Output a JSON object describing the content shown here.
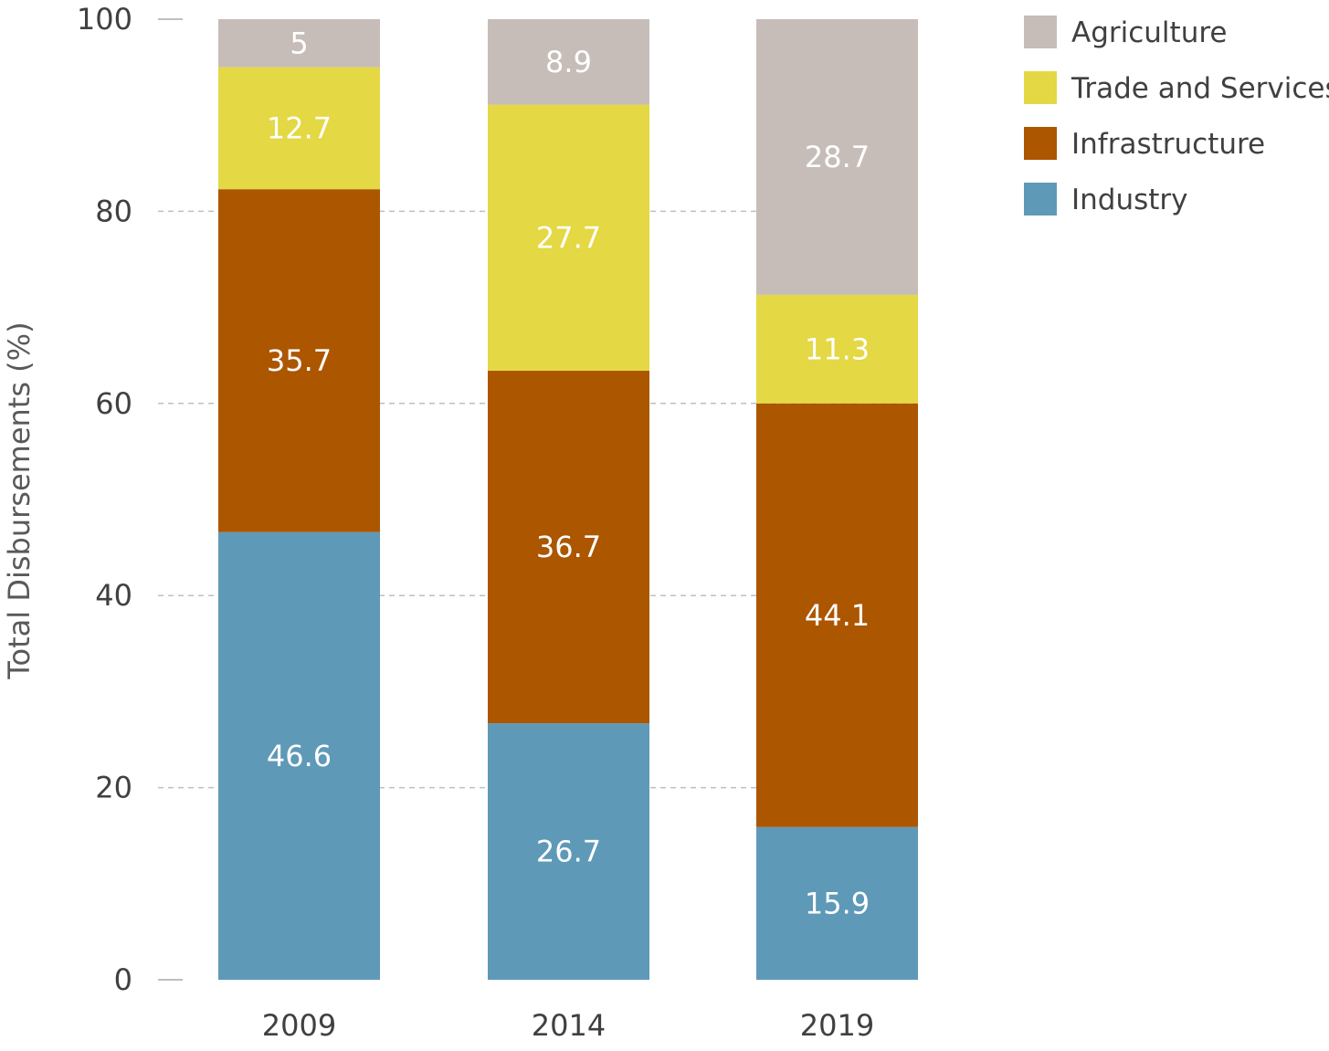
{
  "chart_data": {
    "type": "bar",
    "stacked": true,
    "categories": [
      "2009",
      "2014",
      "2019"
    ],
    "series": [
      {
        "name": "Industry",
        "color": "#5F99B8",
        "values": [
          46.6,
          26.7,
          15.9
        ]
      },
      {
        "name": "Infrastructure",
        "color": "#AC5600",
        "values": [
          35.7,
          36.7,
          44.1
        ]
      },
      {
        "name": "Trade and Services",
        "color": "#E4D844",
        "values": [
          12.7,
          27.7,
          11.3
        ]
      },
      {
        "name": "Agriculture",
        "color": "#C6BDB9",
        "values": [
          5,
          8.9,
          28.7
        ]
      }
    ],
    "legend_order": [
      "Agriculture",
      "Trade and Services",
      "Infrastructure",
      "Industry"
    ],
    "ylabel": "Total Disbursements (%)",
    "xlabel": "",
    "ylim": [
      0,
      100
    ],
    "yticks": [
      0,
      20,
      40,
      60,
      80,
      100
    ],
    "grid": "dashed horizontal",
    "legend_position": "top-right"
  }
}
